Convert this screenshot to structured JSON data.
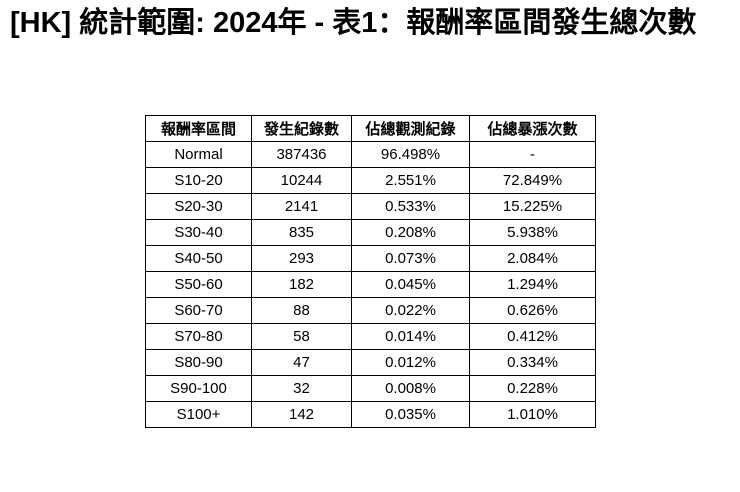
{
  "title": "[HK] 統計範圍: 2024年 - 表1：報酬率區間發生總次數",
  "chart_data": {
    "type": "table",
    "title": "[HK] 統計範圍: 2024年 - 表1：報酬率區間發生總次數",
    "columns": [
      "報酬率區間",
      "發生紀錄數",
      "佔總觀測紀錄",
      "佔總暴漲次數"
    ],
    "rows": [
      [
        "Normal",
        "387436",
        "96.498%",
        "-"
      ],
      [
        "S10-20",
        "10244",
        "2.551%",
        "72.849%"
      ],
      [
        "S20-30",
        "2141",
        "0.533%",
        "15.225%"
      ],
      [
        "S30-40",
        "835",
        "0.208%",
        "5.938%"
      ],
      [
        "S40-50",
        "293",
        "0.073%",
        "2.084%"
      ],
      [
        "S50-60",
        "182",
        "0.045%",
        "1.294%"
      ],
      [
        "S60-70",
        "88",
        "0.022%",
        "0.626%"
      ],
      [
        "S70-80",
        "58",
        "0.014%",
        "0.412%"
      ],
      [
        "S80-90",
        "47",
        "0.012%",
        "0.334%"
      ],
      [
        "S90-100",
        "32",
        "0.008%",
        "0.228%"
      ],
      [
        "S100+",
        "142",
        "0.035%",
        "1.010%"
      ]
    ]
  }
}
